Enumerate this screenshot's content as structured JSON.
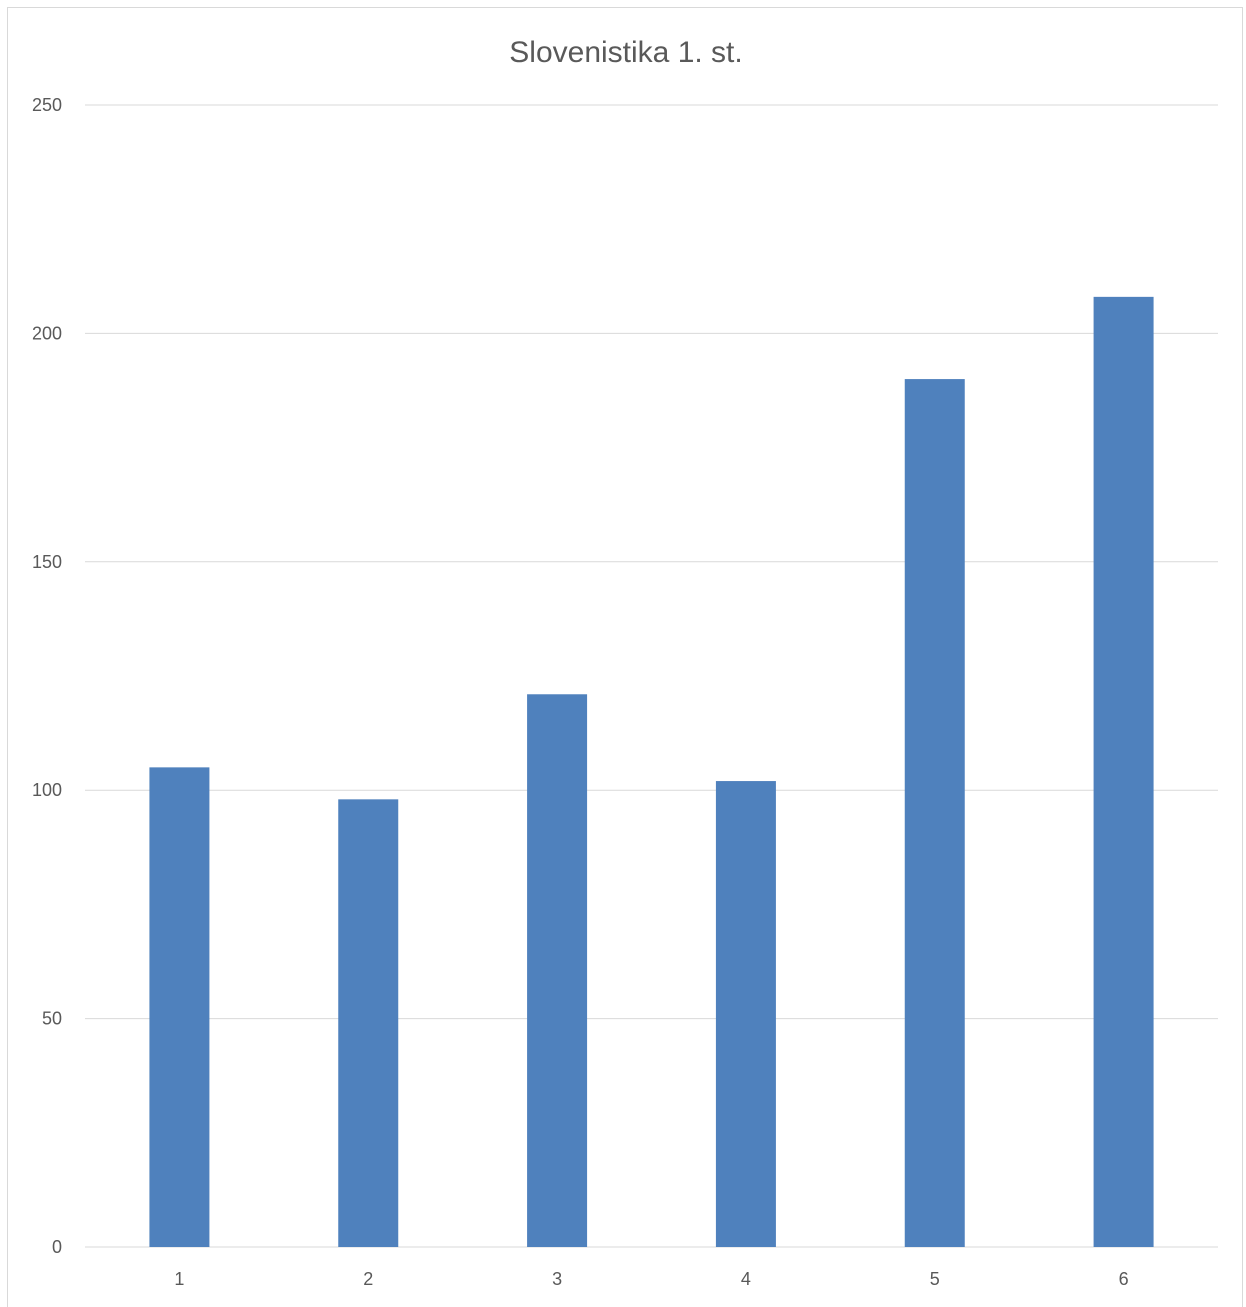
{
  "chart_data": {
    "type": "bar",
    "title": "Slovenistika 1. st.",
    "xlabel": "",
    "ylabel": "",
    "categories": [
      "1",
      "2",
      "3",
      "4",
      "5",
      "6"
    ],
    "values": [
      105,
      98,
      121,
      102,
      190,
      208
    ],
    "ylim": [
      0,
      250
    ],
    "yticks": [
      0,
      50,
      100,
      150,
      200,
      250
    ],
    "grid": true,
    "legend": "none",
    "bar_color": "#4f81bd"
  }
}
